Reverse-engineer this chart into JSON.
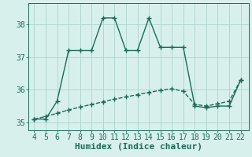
{
  "x": [
    4,
    5,
    6,
    7,
    8,
    9,
    10,
    11,
    12,
    13,
    14,
    15,
    16,
    17,
    18,
    19,
    20,
    21,
    22
  ],
  "y_main": [
    35.1,
    35.1,
    35.65,
    37.2,
    37.2,
    37.2,
    38.2,
    38.2,
    37.2,
    37.2,
    38.2,
    37.3,
    37.3,
    37.3,
    35.5,
    35.45,
    35.5,
    35.5,
    36.3
  ],
  "y_trend": [
    35.1,
    35.18,
    35.28,
    35.38,
    35.47,
    35.55,
    35.63,
    35.71,
    35.78,
    35.85,
    35.92,
    35.98,
    36.03,
    35.95,
    35.55,
    35.5,
    35.57,
    35.65,
    36.3
  ],
  "line_color": "#1a6b5a",
  "bg_color": "#d8f0ec",
  "grid_color": "#b0d8d0",
  "xlabel": "Humidex (Indice chaleur)",
  "xlim": [
    3.5,
    22.7
  ],
  "ylim": [
    34.75,
    38.65
  ],
  "yticks": [
    35,
    36,
    37,
    38
  ],
  "xticks": [
    4,
    5,
    6,
    7,
    8,
    9,
    10,
    11,
    12,
    13,
    14,
    15,
    16,
    17,
    18,
    19,
    20,
    21,
    22
  ],
  "markersize": 4,
  "linewidth": 1.0,
  "xlabel_fontsize": 8,
  "tick_fontsize": 7
}
